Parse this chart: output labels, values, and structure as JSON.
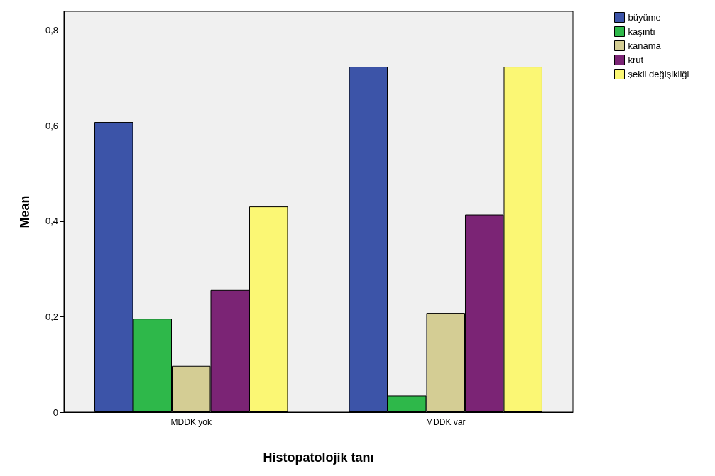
{
  "chart_data": {
    "type": "bar",
    "xlabel": "Histopatolojik tanı",
    "ylabel": "Mean",
    "categories": [
      "MDDK yok",
      "MDDK var"
    ],
    "series": [
      {
        "name": "büyüme",
        "color": "#3c54a8",
        "values": [
          0.608,
          0.724
        ]
      },
      {
        "name": "kaşıntı",
        "color": "#2eb84a",
        "values": [
          0.196,
          0.035
        ]
      },
      {
        "name": "kanama",
        "color": "#d4cd94",
        "values": [
          0.097,
          0.208
        ]
      },
      {
        "name": "krut",
        "color": "#7b2475",
        "values": [
          0.256,
          0.414
        ]
      },
      {
        "name": "şekil değişikliği",
        "color": "#fbf774",
        "values": [
          0.431,
          0.724
        ]
      }
    ],
    "ylim": [
      0,
      0.84
    ],
    "yticks": [
      {
        "value": 0,
        "label": "0"
      },
      {
        "value": 0.2,
        "label": "0,2"
      },
      {
        "value": 0.4,
        "label": "0,4"
      },
      {
        "value": 0.6,
        "label": "0,6"
      },
      {
        "value": 0.8,
        "label": "0,8"
      }
    ],
    "grid": false,
    "legend": "top right"
  }
}
